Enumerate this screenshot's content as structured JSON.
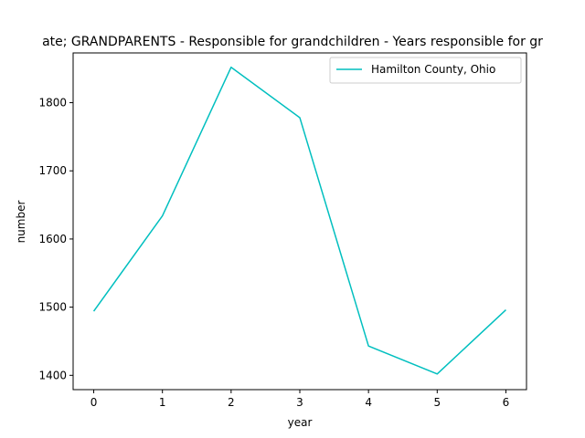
{
  "chart_data": {
    "type": "line",
    "title": "ate; GRANDPARENTS - Responsible for grandchildren - Years responsible for gr",
    "xlabel": "year",
    "ylabel": "number",
    "x": [
      0,
      1,
      2,
      3,
      4,
      5,
      6
    ],
    "xlim": [
      -0.3,
      6.3
    ],
    "ylim": [
      1379,
      1873
    ],
    "xticks": [
      "0",
      "1",
      "2",
      "3",
      "4",
      "5",
      "6"
    ],
    "yticks": [
      "1400",
      "1500",
      "1600",
      "1700",
      "1800"
    ],
    "grid": false,
    "legend_position": "upper right",
    "series": [
      {
        "name": "Hamilton County, Ohio",
        "color": "#00bfbf",
        "values": [
          1494,
          1634,
          1852,
          1778,
          1443,
          1402,
          1496
        ]
      }
    ]
  }
}
